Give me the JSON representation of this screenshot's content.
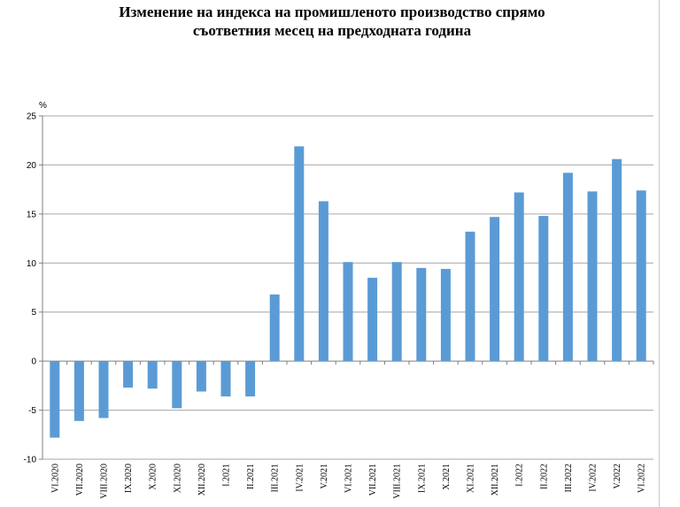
{
  "chart_data": {
    "type": "bar",
    "title_line1": "Изменение на индекса на промишленото производство спрямо",
    "title_line2": "съответния месец на предходната година",
    "unit_label": "%",
    "categories": [
      "VI.2020",
      "VII.2020",
      "VIII.2020",
      "IX.2020",
      "X.2020",
      "XI.2020",
      "XII.2020",
      "I.2021",
      "II.2021",
      "III.2021",
      "IV.2021",
      "V.2021",
      "VI.2021",
      "VII.2021",
      "VIII.2021",
      "IX.2021",
      "X.2021",
      "XI.2021",
      "XII.2021",
      "I.2022",
      "II.2022",
      "III.2022",
      "IV.2022",
      "V.2022",
      "VI.2022"
    ],
    "values": [
      -7.8,
      -6.1,
      -5.8,
      -2.7,
      -2.8,
      -4.8,
      -3.1,
      -3.6,
      -3.6,
      6.8,
      21.9,
      16.3,
      10.1,
      8.5,
      10.1,
      9.5,
      9.4,
      13.2,
      14.7,
      17.2,
      14.8,
      19.2,
      17.3,
      20.6,
      17.4
    ],
    "ylim": [
      -10,
      25
    ],
    "yticks": [
      -10,
      -5,
      0,
      5,
      10,
      15,
      20,
      25
    ],
    "ytick_labels": [
      "-10",
      "-5",
      "0",
      "5",
      "10",
      "15",
      "20",
      "25"
    ],
    "grid": true,
    "legend": "none",
    "bar_color": "#5b9bd5"
  }
}
